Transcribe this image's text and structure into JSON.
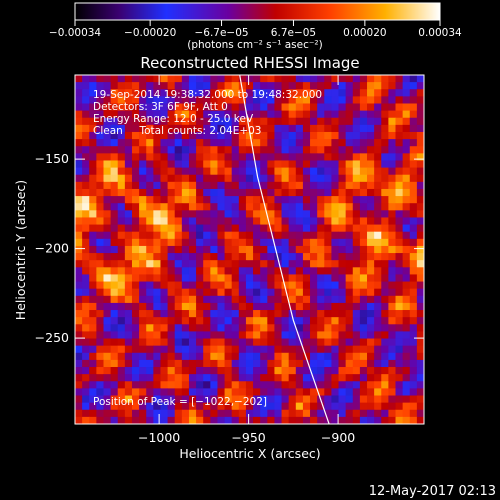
{
  "chart_data": {
    "type": "heatmap",
    "title": "Reconstructed RHESSI Image",
    "xlabel": "Heliocentric X (arcsec)",
    "ylabel": "Heliocentric Y (arcsec)",
    "xlim": [
      -1047,
      -852
    ],
    "ylim": [
      -298,
      -103
    ],
    "x_ticks": [
      -1000,
      -950,
      -900
    ],
    "x_tick_labels": [
      "−1000",
      "−950",
      "−900"
    ],
    "y_ticks": [
      -150,
      -200,
      -250
    ],
    "y_tick_labels": [
      "−150",
      "−200",
      "−250"
    ],
    "colorbar": {
      "colormap": "black-purple-blue-red-orange-yellow-white (RHESSI)",
      "range": [
        -0.00034,
        0.00034
      ],
      "tick_values": [
        -0.00034,
        -0.0002,
        -6.7e-05,
        6.7e-05,
        0.0002,
        0.00034
      ],
      "tick_labels": [
        "−0.00034",
        "−0.00020",
        "−6.7e−05",
        "6.7e−05",
        "0.00020",
        "0.00034"
      ],
      "unit_label": "(photons cm⁻² s⁻¹ asec⁻²)"
    },
    "annotations": {
      "time_range": "19-Sep-2014 19:38:32.000 to 19:48:32.000",
      "detectors": "Detectors: 3F 6F 9F, Att 0",
      "energy_range": "Energy Range: 12.0 - 25.0 keV",
      "method_counts": "Clean     Total counts: 2.04E+03",
      "peak_position": "Position of Peak = [−1022,−202]"
    },
    "limb_curve": [
      [
        -955,
        -103
      ],
      [
        -945,
        -160
      ],
      [
        -935,
        -200
      ],
      [
        -925,
        -240
      ],
      [
        -905,
        -298
      ]
    ],
    "timestamp": "12-May-2017 02:13"
  }
}
